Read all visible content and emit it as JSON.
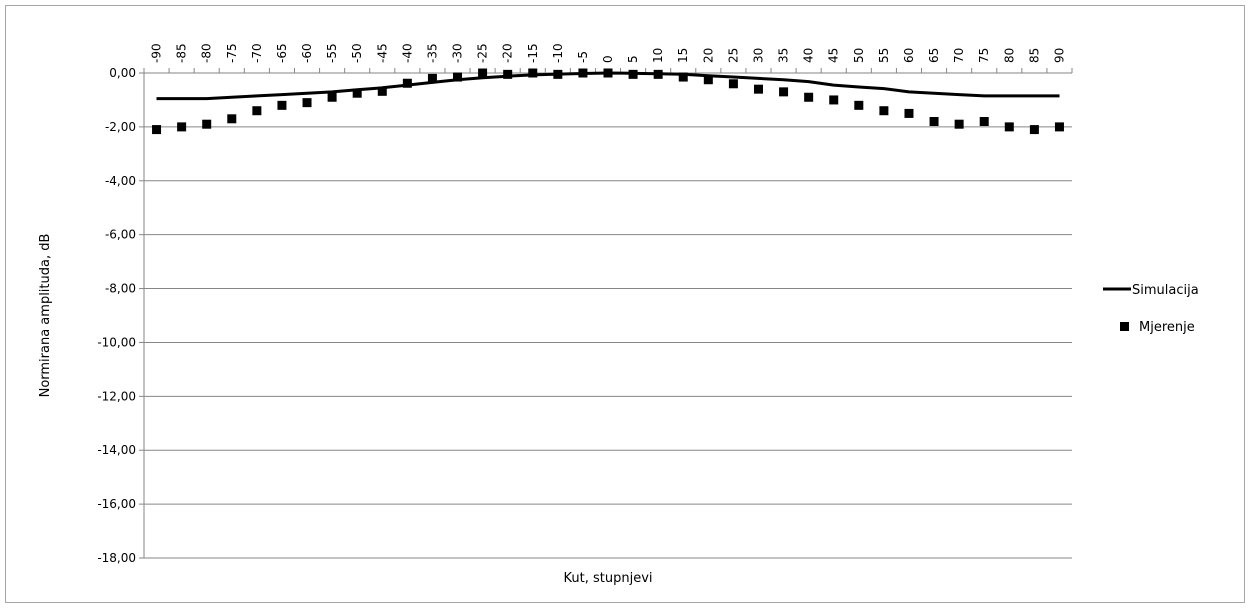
{
  "chart_data": {
    "type": "line",
    "title": "",
    "xlabel": "Kut, stupnjevi",
    "ylabel": "Normirana amplituda, dB",
    "x": [
      -90,
      -85,
      -80,
      -75,
      -70,
      -65,
      -60,
      -55,
      -50,
      -45,
      -40,
      -35,
      -30,
      -25,
      -20,
      -15,
      -10,
      -5,
      0,
      5,
      10,
      15,
      20,
      25,
      30,
      35,
      40,
      45,
      50,
      55,
      60,
      65,
      70,
      75,
      80,
      85,
      90
    ],
    "x_tick_labels": [
      "-90",
      "-85",
      "-80",
      "-75",
      "-70",
      "-65",
      "-60",
      "-55",
      "-50",
      "-45",
      "-40",
      "-35",
      "-30",
      "-25",
      "-20",
      "-15",
      "-10",
      "-5",
      "0",
      "5",
      "10",
      "15",
      "20",
      "25",
      "30",
      "35",
      "40",
      "45",
      "50",
      "55",
      "60",
      "65",
      "70",
      "75",
      "80",
      "85",
      "90"
    ],
    "ylim": [
      -18,
      0
    ],
    "y_ticks": [
      0,
      -2,
      -4,
      -6,
      -8,
      -10,
      -12,
      -14,
      -16,
      -18
    ],
    "y_tick_labels": [
      "0,00",
      "-2,00",
      "-4,00",
      "-6,00",
      "-8,00",
      "-10,00",
      "-12,00",
      "-14,00",
      "-16,00",
      "-18,00"
    ],
    "x_axis_position": "top",
    "grid": "horizontal",
    "legend_position": "right",
    "series": [
      {
        "name": "Simulacija",
        "style": "line",
        "color": "#000000",
        "values": [
          -0.95,
          -0.95,
          -0.95,
          -0.9,
          -0.85,
          -0.8,
          -0.75,
          -0.7,
          -0.62,
          -0.55,
          -0.45,
          -0.35,
          -0.25,
          -0.18,
          -0.12,
          -0.07,
          -0.04,
          -0.02,
          0.0,
          -0.01,
          -0.03,
          -0.05,
          -0.1,
          -0.15,
          -0.2,
          -0.25,
          -0.32,
          -0.45,
          -0.52,
          -0.58,
          -0.7,
          -0.75,
          -0.8,
          -0.85,
          -0.85,
          -0.85,
          -0.85
        ]
      },
      {
        "name": "Mjerenje",
        "style": "square-marker",
        "color": "#000000",
        "values": [
          -2.1,
          -2.0,
          -1.9,
          -1.7,
          -1.4,
          -1.2,
          -1.1,
          -0.9,
          -0.75,
          -0.68,
          -0.38,
          -0.2,
          -0.15,
          0.0,
          -0.05,
          0.0,
          -0.05,
          0.0,
          0.0,
          -0.05,
          -0.05,
          -0.15,
          -0.25,
          -0.4,
          -0.6,
          -0.7,
          -0.9,
          -1.0,
          -1.2,
          -1.4,
          -1.5,
          -1.8,
          -1.9,
          -1.8,
          -2.0,
          -2.1,
          -2.0
        ]
      }
    ]
  }
}
